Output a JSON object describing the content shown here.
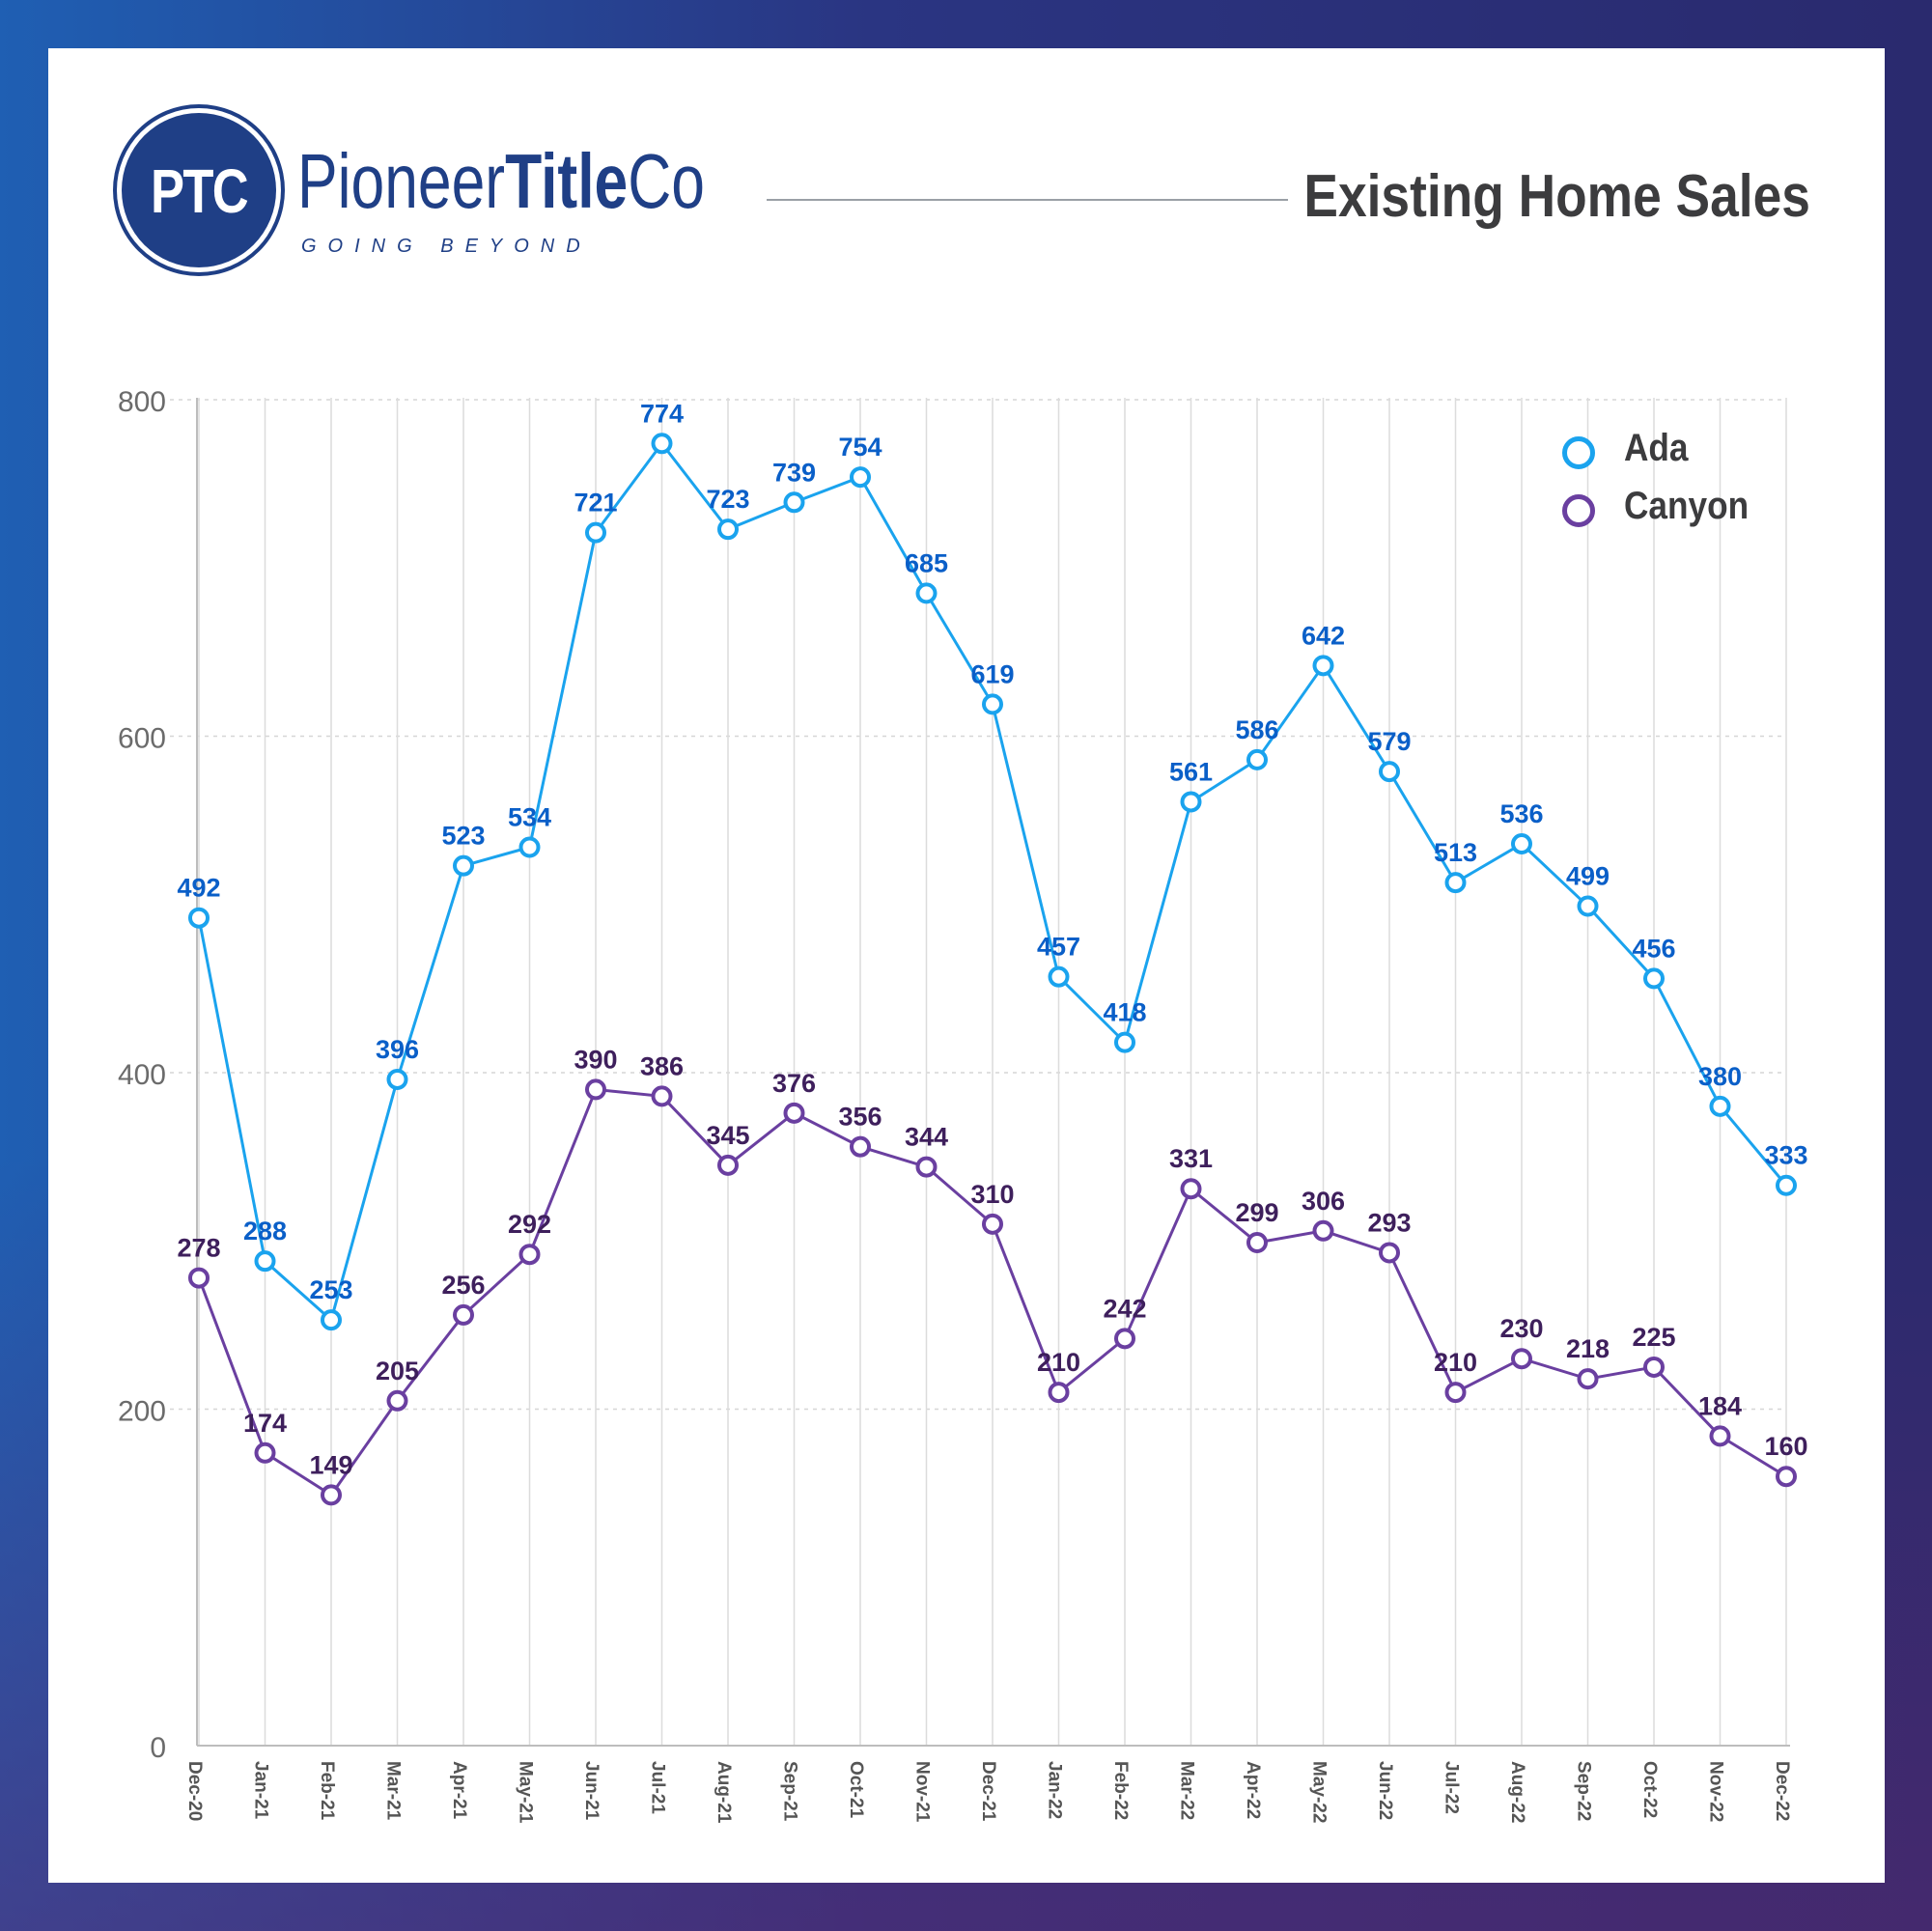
{
  "header": {
    "logo_mark": "PTC",
    "brand_regular": "Pioneer",
    "brand_bold": "Title",
    "brand_suffix": "Co",
    "tagline": "GOING BEYOND",
    "title": "Existing Home Sales"
  },
  "colors": {
    "brand_navy": "#1f3f86",
    "ada": "#1aa3ee",
    "ada_label": "#0a5fc8",
    "canyon": "#6a3fa0",
    "canyon_label": "#3e1f5c",
    "grid": "#d6d6d6",
    "axis_text": "#6b6b6b"
  },
  "chart_data": {
    "type": "line",
    "title": "Existing Home Sales",
    "categories": [
      "Dec-20",
      "Jan-21",
      "Feb-21",
      "Mar-21",
      "Apr-21",
      "May-21",
      "Jun-21",
      "Jul-21",
      "Aug-21",
      "Sep-21",
      "Oct-21",
      "Nov-21",
      "Dec-21",
      "Jan-22",
      "Feb-22",
      "Mar-22",
      "Apr-22",
      "May-22",
      "Jun-22",
      "Jul-22",
      "Aug-22",
      "Sep-22",
      "Oct-22",
      "Nov-22",
      "Dec-22"
    ],
    "series": [
      {
        "name": "Ada",
        "color": "#1aa3ee",
        "values": [
          492,
          288,
          253,
          396,
          523,
          534,
          721,
          774,
          723,
          739,
          754,
          685,
          619,
          457,
          418,
          561,
          586,
          642,
          579,
          513,
          536,
          499,
          456,
          380,
          333
        ]
      },
      {
        "name": "Canyon",
        "color": "#6a3fa0",
        "values": [
          278,
          174,
          149,
          205,
          256,
          292,
          390,
          386,
          345,
          376,
          356,
          344,
          310,
          210,
          242,
          331,
          299,
          306,
          293,
          210,
          230,
          218,
          225,
          184,
          160
        ]
      }
    ],
    "ylim": [
      0,
      800
    ],
    "yticks": [
      0,
      200,
      400,
      600,
      800
    ],
    "grid": true,
    "legend_position": "top-right",
    "data_labels": true
  }
}
